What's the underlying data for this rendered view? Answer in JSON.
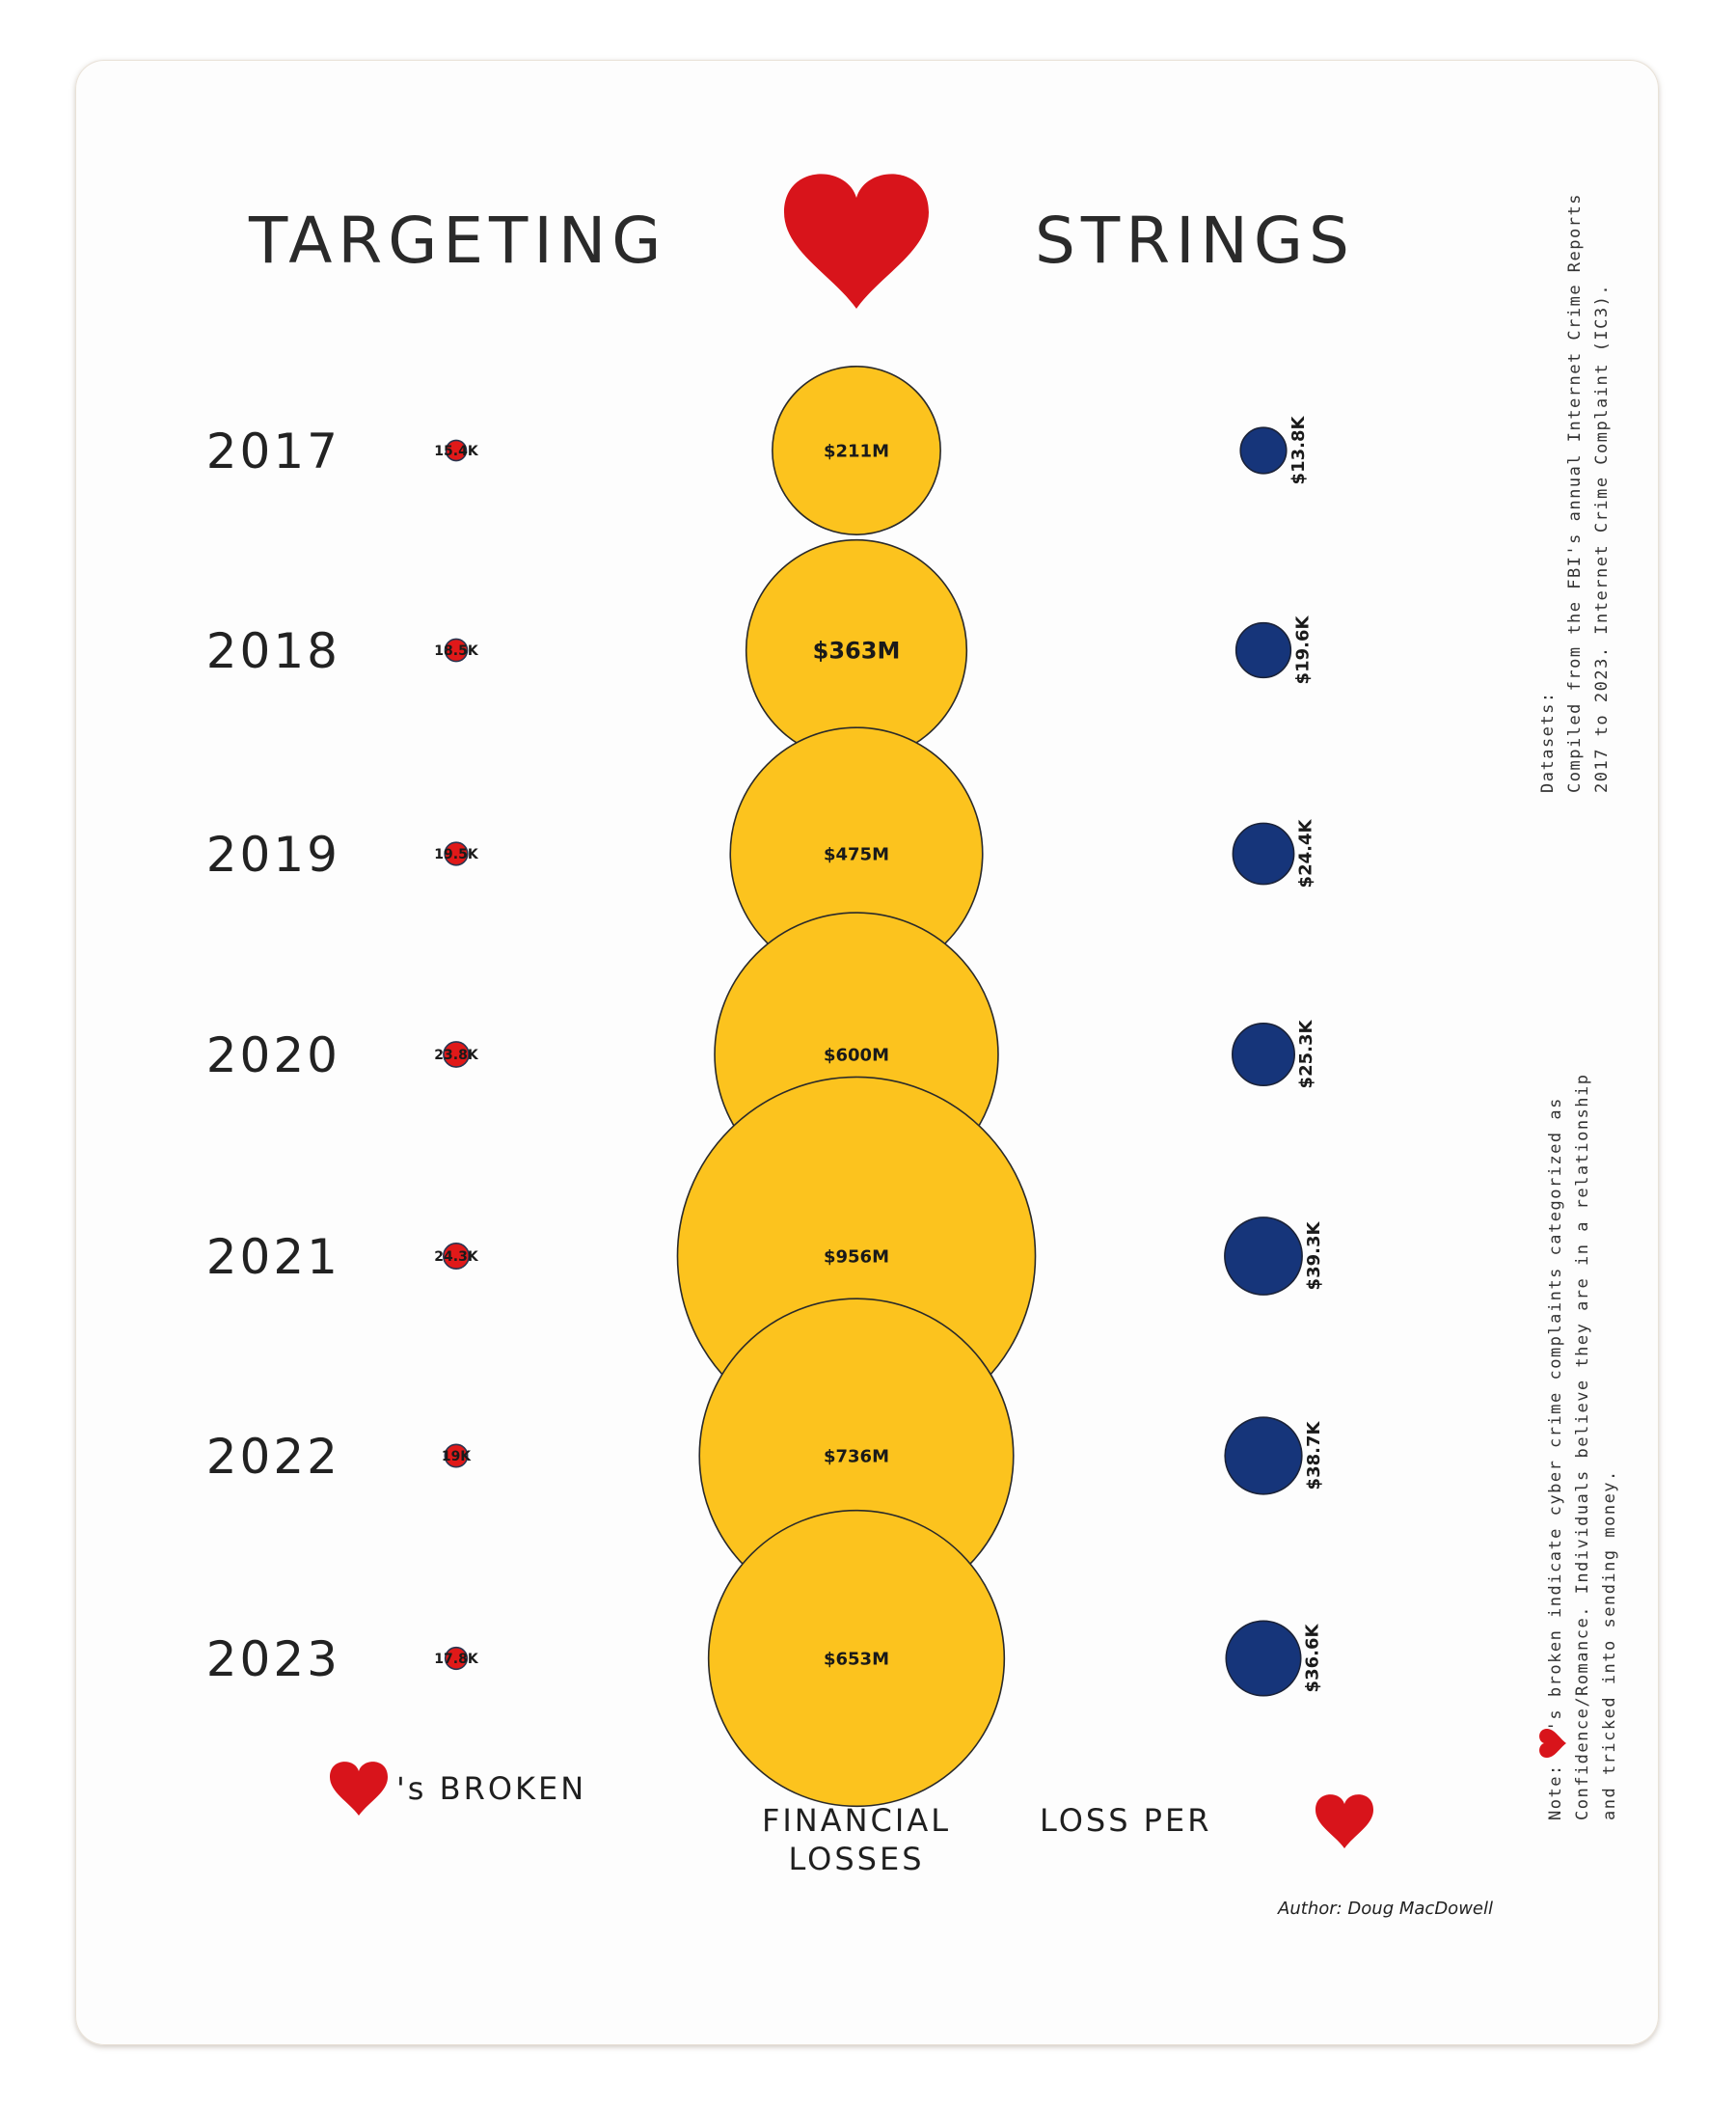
{
  "title": {
    "left": "TARGETING",
    "right": "STRINGS"
  },
  "chart_data": {
    "type": "bubble",
    "categories": [
      "2017",
      "2018",
      "2019",
      "2020",
      "2021",
      "2022",
      "2023"
    ],
    "series": [
      {
        "key": "broken",
        "values": [
          15.4,
          18.5,
          19.5,
          23.8,
          24.3,
          19,
          17.8
        ],
        "labels": [
          "15.4K",
          "18.5K",
          "19.5K",
          "23.8K",
          "24.3K",
          "19K",
          "17.8K"
        ],
        "color": "#e01919"
      },
      {
        "key": "losses",
        "values": [
          211,
          363,
          475,
          600,
          956,
          736,
          653
        ],
        "labels": [
          "$211M",
          "$363M",
          "$475M",
          "$600M",
          "$956M",
          "$736M",
          "$653M"
        ],
        "color": "#fcc31e"
      },
      {
        "key": "loss_per",
        "values": [
          13.8,
          19.6,
          24.4,
          25.3,
          39.3,
          38.7,
          36.6
        ],
        "labels": [
          "$13.8K",
          "$19.6K",
          "$24.4K",
          "$25.3K",
          "$39.3K",
          "$38.7K",
          "$36.6K"
        ],
        "color": "#16357a"
      }
    ]
  },
  "captions": {
    "broken": "'s BROKEN",
    "losses_line1": "FINANCIAL",
    "losses_line2": "LOSSES",
    "loss_per": "LOSS PER"
  },
  "datasets_note": {
    "line1": "Datasets:",
    "line2": "Compiled from the FBI's annual Internet Crime Reports",
    "line3": "2017 to 2023. Internet Crime Complaint (IC3)."
  },
  "note": {
    "line1_prefix": "Note:",
    "line1_rest": "'s broken indicate cyber crime complaints categorized as",
    "line2": "Confidence/Romance. Individuals believe they are in a relationship",
    "line3": "and tricked into sending money."
  },
  "author": "Author: Doug MacDowell",
  "colors": {
    "heart": "#d8141b",
    "ink": "#1a1a1a"
  }
}
